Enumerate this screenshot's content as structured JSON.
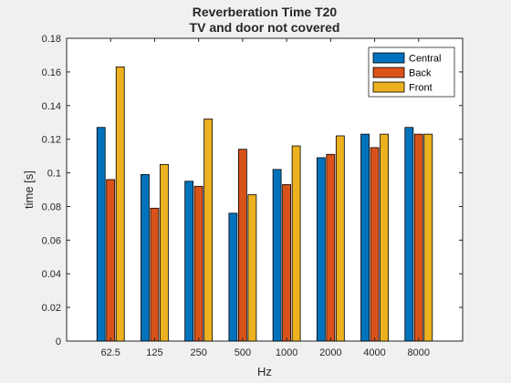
{
  "chart_data": {
    "type": "bar",
    "title": "Reverberation Time T20",
    "subtitle": "TV and door not covered",
    "xlabel": "Hz",
    "ylabel": "time [s]",
    "ylim": [
      0,
      0.18
    ],
    "yticks": [
      0,
      0.02,
      0.04,
      0.06,
      0.08,
      0.1,
      0.12,
      0.14,
      0.16,
      0.18
    ],
    "ytick_labels": [
      "0",
      "0.02",
      "0.04",
      "0.06",
      "0.08",
      "0.1",
      "0.12",
      "0.14",
      "0.16",
      "0.18"
    ],
    "categories": [
      "62.5",
      "125",
      "250",
      "500",
      "1000",
      "2000",
      "4000",
      "8000"
    ],
    "series": [
      {
        "name": "Central",
        "color": "#0072BD",
        "values": [
          0.127,
          0.099,
          0.095,
          0.076,
          0.102,
          0.109,
          0.123,
          0.127
        ]
      },
      {
        "name": "Back",
        "color": "#D95319",
        "values": [
          0.096,
          0.079,
          0.092,
          0.114,
          0.093,
          0.111,
          0.115,
          0.123
        ]
      },
      {
        "name": "Front",
        "color": "#EDB120",
        "values": [
          0.163,
          0.105,
          0.132,
          0.087,
          0.116,
          0.122,
          0.123,
          0.123
        ]
      }
    ],
    "legend_position": "top-right",
    "grid": false
  }
}
